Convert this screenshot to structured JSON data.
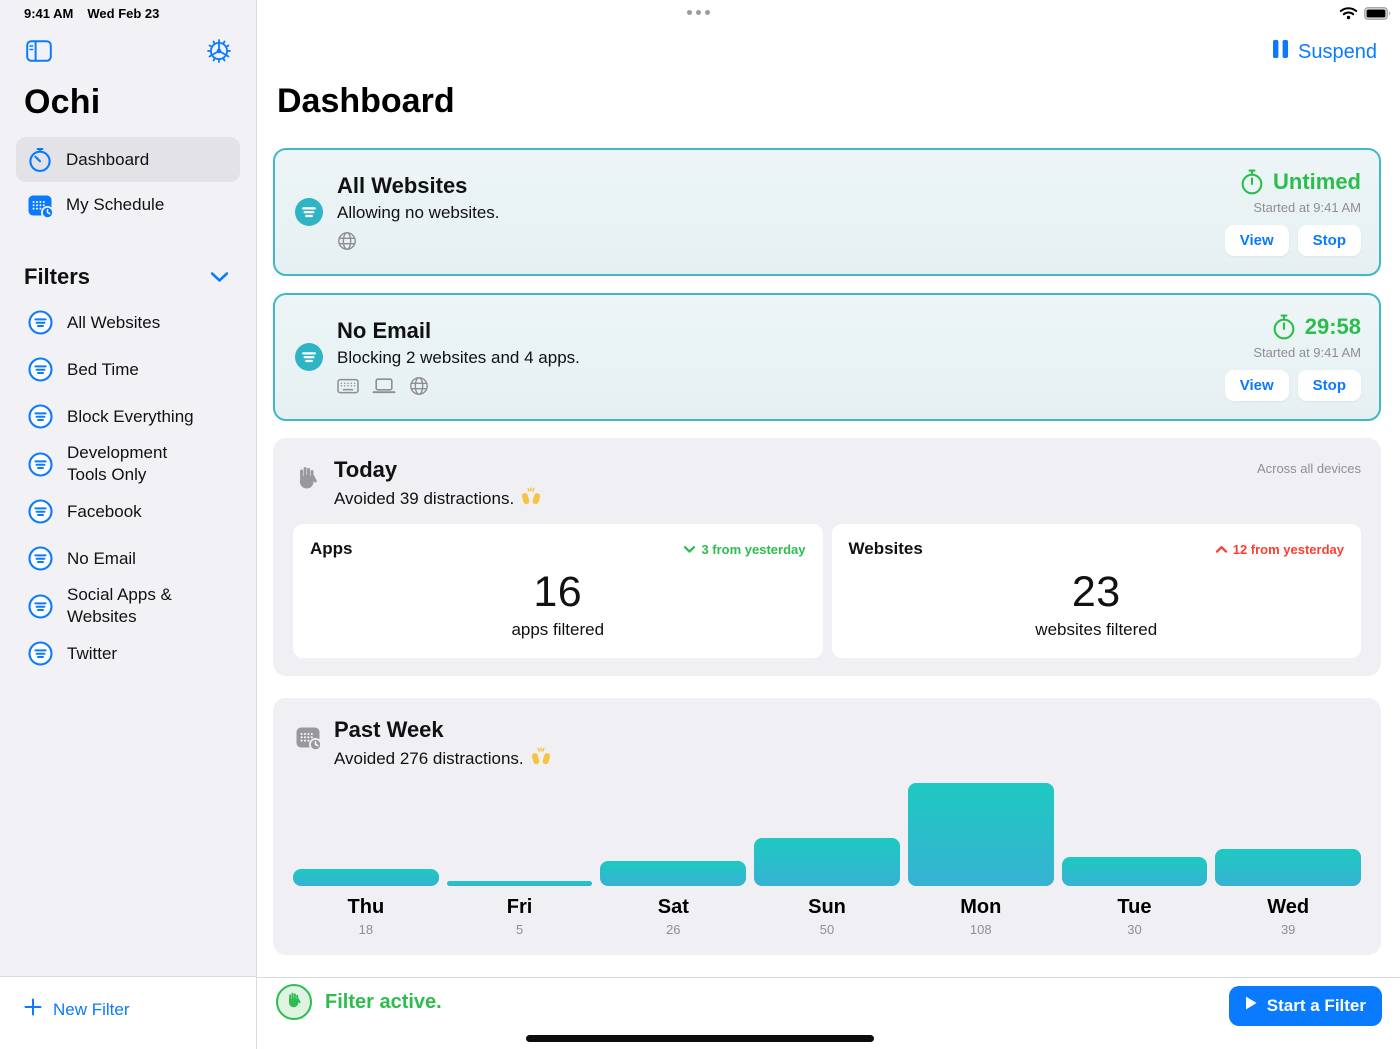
{
  "status_bar": {
    "time": "9:41 AM",
    "date": "Wed Feb 23"
  },
  "colors": {
    "accent_blue": "#0a7aff",
    "accent_green": "#2cbd4e",
    "accent_red": "#fa3e32",
    "accent_teal": "#2fb4c6",
    "card_border_teal": "#3fb9c7",
    "bar_gradient_top": "#1ec9c1",
    "bar_gradient_bottom": "#36b2d3"
  },
  "sidebar": {
    "app_title": "Ochi",
    "nav": [
      {
        "label": "Dashboard",
        "icon": "timer",
        "selected": true
      },
      {
        "label": "My Schedule",
        "icon": "calendar",
        "selected": false
      }
    ],
    "filters_header": "Filters",
    "filters": [
      "All Websites",
      "Bed Time",
      "Block Everything",
      "Development Tools Only",
      "Facebook",
      "No Email",
      "Social Apps & Websites",
      "Twitter"
    ],
    "new_filter_label": "New Filter"
  },
  "header": {
    "title": "Dashboard",
    "suspend_label": "Suspend"
  },
  "active_filters": [
    {
      "title": "All Websites",
      "subtitle": "Allowing no websites.",
      "devices": [
        "globe"
      ],
      "timer_label": "Untimed",
      "started_label": "Started at 9:41 AM",
      "view_label": "View",
      "stop_label": "Stop"
    },
    {
      "title": "No Email",
      "subtitle": "Blocking 2 websites and 4 apps.",
      "devices": [
        "keyboard",
        "laptop",
        "globe"
      ],
      "timer_label": "29:58",
      "started_label": "Started at 9:41 AM",
      "view_label": "View",
      "stop_label": "Stop"
    }
  ],
  "today": {
    "title": "Today",
    "subtitle": "Avoided 39 distractions.",
    "celebration_emoji": "🙌",
    "scope_note": "Across all devices",
    "stats": [
      {
        "label": "Apps",
        "delta_text": "3 from yesterday",
        "delta_direction": "down",
        "value": "16",
        "unit": "apps filtered"
      },
      {
        "label": "Websites",
        "delta_text": "12 from yesterday",
        "delta_direction": "up",
        "value": "23",
        "unit": "websites filtered"
      }
    ]
  },
  "past_week": {
    "title": "Past Week",
    "subtitle": "Avoided 276 distractions.",
    "celebration_emoji": "🙌"
  },
  "chart_data": {
    "type": "bar",
    "title": "Past Week — distractions avoided per day",
    "categories": [
      "Thu",
      "Fri",
      "Sat",
      "Sun",
      "Mon",
      "Tue",
      "Wed"
    ],
    "values": [
      18,
      5,
      26,
      50,
      108,
      30,
      39
    ],
    "xlabel": "",
    "ylabel": "",
    "ylim": [
      0,
      108
    ],
    "grid": false,
    "legend": false,
    "value_labels": "shown below day names"
  },
  "footer": {
    "status_label": "Filter active.",
    "start_button_label": "Start a Filter"
  }
}
